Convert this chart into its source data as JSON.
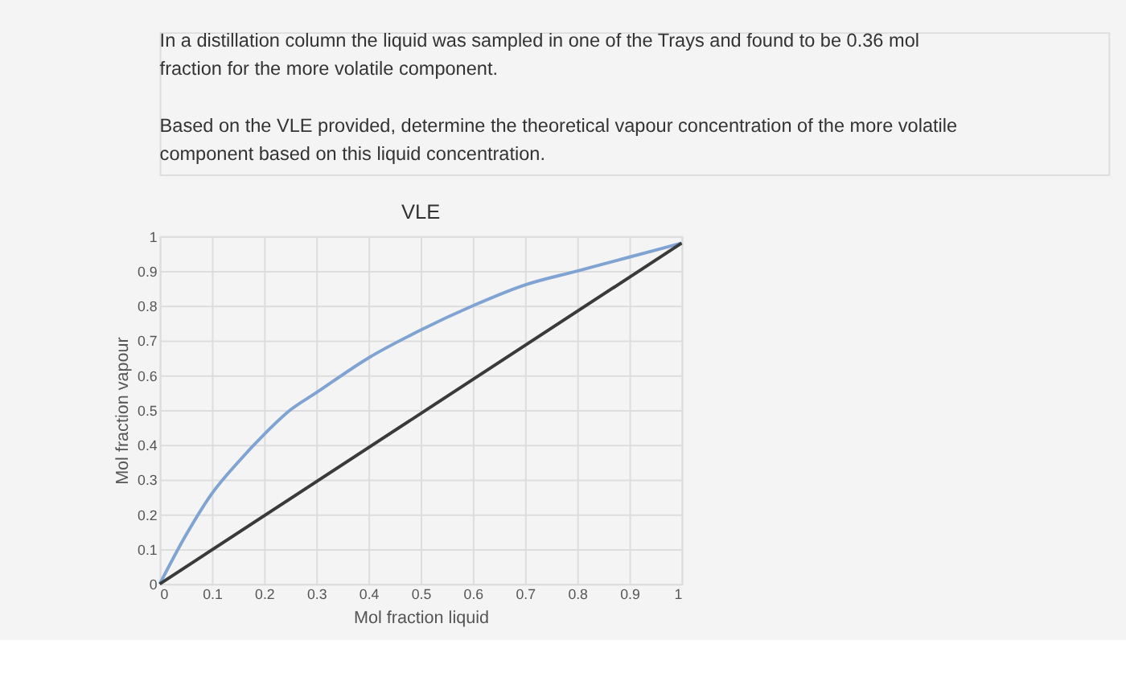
{
  "chart_data": {
    "type": "line",
    "title": "VLE",
    "xlabel": "Mol fraction liquid",
    "ylabel": "Mol fraction vapour",
    "annotations": [
      "In a distillation column the liquid was sampled in one of the Trays and found to be 0.36 mol fraction for the more volatile component.",
      "Based on the VLE provided, determine the theoretical vapour concentration of the more volatile component based on this liquid concentration."
    ],
    "series": [
      {
        "x": [
          0,
          0.05,
          0.1,
          0.15,
          0.2,
          0.25,
          0.3,
          0.4,
          0.5,
          0.6,
          0.7,
          0.8,
          0.9,
          1
        ],
        "values": [
          0,
          0.14,
          0.26,
          0.35,
          0.43,
          0.5,
          0.55,
          0.65,
          0.73,
          0.8,
          0.86,
          0.9,
          0.94,
          0.98
        ],
        "color": "#7fa3d3"
      },
      {
        "x": [
          0,
          1
        ],
        "values": [
          0,
          0.98
        ],
        "color": "#3a3a3a"
      }
    ],
    "xlim": [
      0,
      1
    ],
    "ylim": [
      0,
      1
    ],
    "xticks": [
      0,
      0.1,
      0.2,
      0.3,
      0.4,
      0.5,
      0.6,
      0.7,
      0.8,
      0.9,
      1
    ],
    "yticks": [
      0,
      0.1,
      0.2,
      0.3,
      0.4,
      0.5,
      0.6,
      0.7,
      0.8,
      0.9,
      1
    ],
    "grid": true,
    "marker": "none",
    "line_style": "solid"
  }
}
